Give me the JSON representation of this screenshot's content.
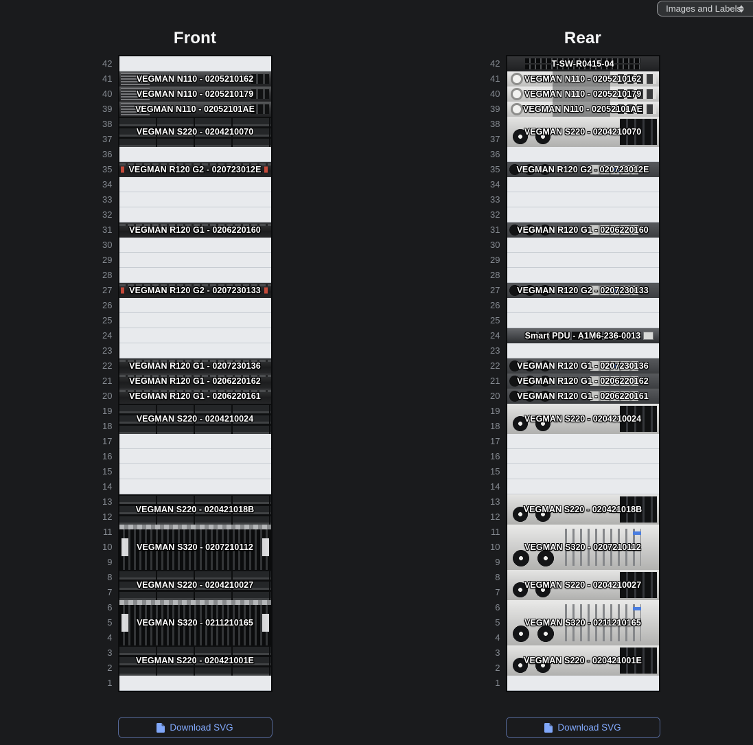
{
  "controls": {
    "view_mode": "Images and Labels",
    "view_mode_icon": "updown-arrows-icon",
    "download_label": "Download SVG",
    "download_icon": "file-icon"
  },
  "colors": {
    "accent_blue": "#80a7f9",
    "empty_unit": "#e8eaed",
    "page_bg": "#1a1b1d"
  },
  "unit_numbers": [
    42,
    41,
    40,
    39,
    38,
    37,
    36,
    35,
    34,
    33,
    32,
    31,
    30,
    29,
    28,
    27,
    26,
    25,
    24,
    23,
    22,
    21,
    20,
    19,
    18,
    17,
    16,
    15,
    14,
    13,
    12,
    11,
    10,
    9,
    8,
    7,
    6,
    5,
    4,
    3,
    2,
    1
  ],
  "racks": [
    {
      "title": "Front",
      "devices": [
        {
          "top_u": 41,
          "size": 1,
          "label": "VEGMAN N110 - 0205210162",
          "style": "f-n110"
        },
        {
          "top_u": 40,
          "size": 1,
          "label": "VEGMAN N110 - 0205210179",
          "style": "f-n110"
        },
        {
          "top_u": 39,
          "size": 1,
          "label": "VEGMAN N110 - 02052101AE",
          "style": "f-n110"
        },
        {
          "top_u": 38,
          "size": 2,
          "label": "VEGMAN S220 - 0204210070",
          "style": "f-s220"
        },
        {
          "top_u": 35,
          "size": 1,
          "label": "VEGMAN R120 G2 - 020723012E",
          "style": "f-r120 g2"
        },
        {
          "top_u": 31,
          "size": 1,
          "label": "VEGMAN R120 G1 - 0206220160",
          "style": "f-r120"
        },
        {
          "top_u": 27,
          "size": 1,
          "label": "VEGMAN R120 G2 - 0207230133",
          "style": "f-r120 g2"
        },
        {
          "top_u": 22,
          "size": 1,
          "label": "VEGMAN R120 G1 - 0207230136",
          "style": "f-r120"
        },
        {
          "top_u": 21,
          "size": 1,
          "label": "VEGMAN R120 G1 - 0206220162",
          "style": "f-r120"
        },
        {
          "top_u": 20,
          "size": 1,
          "label": "VEGMAN R120 G1 - 0206220161",
          "style": "f-r120"
        },
        {
          "top_u": 19,
          "size": 2,
          "label": "VEGMAN S220 - 0204210024",
          "style": "f-s220"
        },
        {
          "top_u": 13,
          "size": 2,
          "label": "VEGMAN S220 - 020421018B",
          "style": "f-s220"
        },
        {
          "top_u": 11,
          "size": 3,
          "label": "VEGMAN S320 - 0207210112",
          "style": "f-s320"
        },
        {
          "top_u": 8,
          "size": 2,
          "label": "VEGMAN S220 - 0204210027",
          "style": "f-s220"
        },
        {
          "top_u": 6,
          "size": 3,
          "label": "VEGMAN S320 - 0211210165",
          "style": "f-s320"
        },
        {
          "top_u": 3,
          "size": 2,
          "label": "VEGMAN S220 - 020421001E",
          "style": "f-s220"
        }
      ]
    },
    {
      "title": "Rear",
      "devices": [
        {
          "top_u": 42,
          "size": 1,
          "label": "T-SW-R0415-04",
          "style": "r-sw"
        },
        {
          "top_u": 41,
          "size": 1,
          "label": "VEGMAN N110 - 0205210162",
          "style": "r-n110"
        },
        {
          "top_u": 40,
          "size": 1,
          "label": "VEGMAN N110 - 0205210179",
          "style": "r-n110"
        },
        {
          "top_u": 39,
          "size": 1,
          "label": "VEGMAN N110 - 02052101AE",
          "style": "r-n110"
        },
        {
          "top_u": 38,
          "size": 2,
          "label": "VEGMAN S220 - 0204210070",
          "style": "r-s220"
        },
        {
          "top_u": 35,
          "size": 1,
          "label": "VEGMAN R120 G2 - 020723012E",
          "style": "r-r120"
        },
        {
          "top_u": 31,
          "size": 1,
          "label": "VEGMAN R120 G1 - 0206220160",
          "style": "r-r120"
        },
        {
          "top_u": 27,
          "size": 1,
          "label": "VEGMAN R120 G2 - 0207230133",
          "style": "r-r120"
        },
        {
          "top_u": 24,
          "size": 1,
          "label": "Smart PDU - A1M6-236-0013",
          "style": "r-pdu"
        },
        {
          "top_u": 22,
          "size": 1,
          "label": "VEGMAN R120 G1 - 0207230136",
          "style": "r-r120"
        },
        {
          "top_u": 21,
          "size": 1,
          "label": "VEGMAN R120 G1 - 0206220162",
          "style": "r-r120"
        },
        {
          "top_u": 20,
          "size": 1,
          "label": "VEGMAN R120 G1 - 0206220161",
          "style": "r-r120"
        },
        {
          "top_u": 19,
          "size": 2,
          "label": "VEGMAN S220 - 0204210024",
          "style": "r-s220"
        },
        {
          "top_u": 13,
          "size": 2,
          "label": "VEGMAN S220 - 020421018B",
          "style": "r-s220"
        },
        {
          "top_u": 11,
          "size": 3,
          "label": "VEGMAN S320 - 0207210112",
          "style": "r-s320"
        },
        {
          "top_u": 8,
          "size": 2,
          "label": "VEGMAN S220 - 0204210027",
          "style": "r-s220"
        },
        {
          "top_u": 6,
          "size": 3,
          "label": "VEGMAN S320 - 0211210165",
          "style": "r-s320"
        },
        {
          "top_u": 3,
          "size": 2,
          "label": "VEGMAN S220 - 020421001E",
          "style": "r-s220"
        }
      ]
    }
  ]
}
